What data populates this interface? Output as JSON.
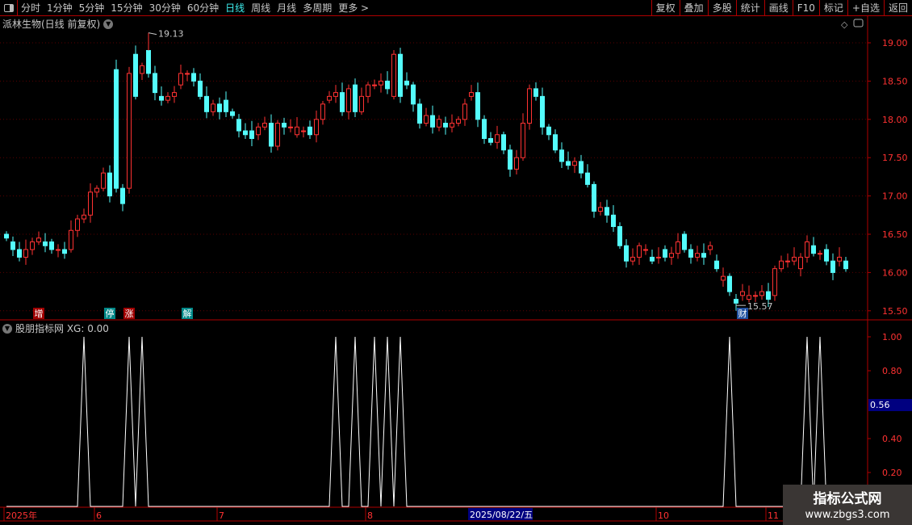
{
  "toolbar": {
    "periods": [
      "分时",
      "1分钟",
      "5分钟",
      "15分钟",
      "30分钟",
      "60分钟",
      "日线",
      "周线",
      "月线",
      "多周期",
      "更多 >"
    ],
    "active": "日线",
    "right_buttons": [
      "复权",
      "叠加",
      "多股",
      "统计",
      "画线",
      "F10",
      "标记",
      "+自选",
      "返回"
    ]
  },
  "main_title": "派林生物(日线 前复权)",
  "indicator_title": "股朋指标网 XG: 0.00",
  "watermark": {
    "line1": "指标公式网",
    "line2": "www.zbgs3.com"
  },
  "colors": {
    "up": "#ff3232",
    "down": "#54fcfc",
    "background": "#000000",
    "border": "#b00000",
    "indicator": "#ffffff"
  },
  "chart_data": [
    {
      "type": "candlestick",
      "ylim": [
        15.4,
        19.3
      ],
      "yticks": [
        "19.00",
        "18.50",
        "18.00",
        "17.50",
        "17.00",
        "16.50",
        "16.00",
        "15.50"
      ],
      "annotations": {
        "high": "19.13",
        "low": "15.57"
      },
      "events": [
        {
          "label": "增",
          "index": 5,
          "color": "#a00000"
        },
        {
          "label": "停",
          "index": 16,
          "color": "#008888"
        },
        {
          "label": "涨",
          "index": 19,
          "color": "#a00000"
        },
        {
          "label": "解",
          "index": 28,
          "color": "#008888"
        },
        {
          "label": "财",
          "index": 114,
          "color": "#2050a0"
        }
      ],
      "candles_open_close": [
        [
          16.5,
          16.45
        ],
        [
          16.4,
          16.3
        ],
        [
          16.3,
          16.2
        ],
        [
          16.2,
          16.3
        ],
        [
          16.3,
          16.4
        ],
        [
          16.4,
          16.45
        ],
        [
          16.4,
          16.35
        ],
        [
          16.4,
          16.3
        ],
        [
          16.3,
          16.3
        ],
        [
          16.3,
          16.25
        ],
        [
          16.3,
          16.55
        ],
        [
          16.55,
          16.7
        ],
        [
          16.7,
          16.75
        ],
        [
          16.75,
          17.05
        ],
        [
          17.05,
          17.1
        ],
        [
          17.1,
          17.3
        ],
        [
          17.3,
          17.0
        ],
        [
          18.65,
          17.1
        ],
        [
          17.1,
          16.9
        ],
        [
          17.1,
          18.6
        ],
        [
          18.85,
          18.3
        ],
        [
          18.6,
          18.7
        ],
        [
          18.9,
          18.6
        ],
        [
          18.6,
          18.35
        ],
        [
          18.3,
          18.25
        ],
        [
          18.25,
          18.3
        ],
        [
          18.3,
          18.35
        ],
        [
          18.45,
          18.6
        ],
        [
          18.6,
          18.6
        ],
        [
          18.6,
          18.5
        ],
        [
          18.5,
          18.3
        ],
        [
          18.3,
          18.1
        ],
        [
          18.1,
          18.2
        ],
        [
          18.2,
          18.1
        ],
        [
          18.25,
          18.1
        ],
        [
          18.1,
          18.05
        ],
        [
          18.0,
          17.85
        ],
        [
          17.85,
          17.8
        ],
        [
          17.85,
          17.75
        ],
        [
          17.8,
          17.9
        ],
        [
          17.9,
          17.95
        ],
        [
          17.95,
          17.65
        ],
        [
          17.65,
          17.95
        ],
        [
          17.95,
          17.9
        ],
        [
          17.9,
          17.9
        ],
        [
          17.8,
          17.9
        ],
        [
          17.85,
          17.85
        ],
        [
          17.9,
          17.8
        ],
        [
          17.8,
          18.0
        ],
        [
          18.0,
          18.2
        ],
        [
          18.25,
          18.3
        ],
        [
          18.3,
          18.35
        ],
        [
          18.35,
          18.1
        ],
        [
          18.1,
          18.4
        ],
        [
          18.45,
          18.1
        ],
        [
          18.1,
          18.3
        ],
        [
          18.3,
          18.45
        ],
        [
          18.45,
          18.45
        ],
        [
          18.45,
          18.5
        ],
        [
          18.5,
          18.4
        ],
        [
          18.3,
          18.85
        ],
        [
          18.85,
          18.3
        ],
        [
          18.5,
          18.45
        ],
        [
          18.45,
          18.2
        ],
        [
          18.2,
          17.95
        ],
        [
          17.95,
          18.05
        ],
        [
          18.05,
          17.9
        ],
        [
          17.9,
          18.0
        ],
        [
          17.95,
          17.9
        ],
        [
          17.9,
          17.95
        ],
        [
          17.95,
          18.0
        ],
        [
          18.0,
          18.2
        ],
        [
          18.3,
          18.35
        ],
        [
          18.35,
          18.0
        ],
        [
          18.0,
          17.75
        ],
        [
          17.75,
          17.7
        ],
        [
          17.7,
          17.8
        ],
        [
          17.8,
          17.6
        ],
        [
          17.6,
          17.35
        ],
        [
          17.35,
          17.5
        ],
        [
          17.5,
          17.95
        ],
        [
          17.95,
          18.4
        ],
        [
          18.4,
          18.3
        ],
        [
          18.3,
          17.9
        ],
        [
          17.9,
          17.8
        ],
        [
          17.8,
          17.6
        ],
        [
          17.6,
          17.45
        ],
        [
          17.45,
          17.4
        ],
        [
          17.4,
          17.45
        ],
        [
          17.45,
          17.3
        ],
        [
          17.3,
          17.15
        ],
        [
          17.15,
          16.8
        ],
        [
          16.8,
          16.85
        ],
        [
          16.85,
          16.75
        ],
        [
          16.75,
          16.6
        ],
        [
          16.6,
          16.35
        ],
        [
          16.35,
          16.15
        ],
        [
          16.15,
          16.2
        ],
        [
          16.2,
          16.35
        ],
        [
          16.3,
          16.3
        ],
        [
          16.2,
          16.15
        ],
        [
          16.2,
          16.2
        ],
        [
          16.3,
          16.2
        ],
        [
          16.2,
          16.25
        ],
        [
          16.25,
          16.4
        ],
        [
          16.5,
          16.3
        ],
        [
          16.3,
          16.2
        ],
        [
          16.2,
          16.25
        ],
        [
          16.25,
          16.2
        ],
        [
          16.3,
          16.35
        ],
        [
          16.15,
          16.05
        ],
        [
          15.9,
          15.95
        ],
        [
          15.95,
          15.75
        ],
        [
          15.65,
          15.6
        ],
        [
          15.7,
          15.75
        ],
        [
          15.65,
          15.7
        ],
        [
          15.7,
          15.7
        ],
        [
          15.7,
          15.75
        ],
        [
          15.75,
          15.65
        ],
        [
          15.7,
          16.05
        ],
        [
          16.05,
          16.15
        ],
        [
          16.15,
          16.15
        ],
        [
          16.15,
          16.2
        ],
        [
          16.05,
          16.2
        ],
        [
          16.2,
          16.4
        ],
        [
          16.35,
          16.25
        ],
        [
          16.25,
          16.25
        ],
        [
          16.3,
          16.15
        ],
        [
          16.15,
          16.0
        ],
        [
          16.15,
          16.2
        ],
        [
          16.15,
          16.05
        ]
      ]
    },
    {
      "type": "line",
      "name": "XG",
      "ylim": [
        0,
        1.05
      ],
      "yticks": [
        "1.00",
        "0.80",
        "0.40",
        "0.20"
      ],
      "cursor_value": "0.56",
      "signal_indices": [
        12,
        19,
        21,
        51,
        54,
        57,
        59,
        61,
        112,
        124,
        126
      ]
    }
  ],
  "date_axis": {
    "labels": [
      {
        "text": "2025年",
        "index": 0
      },
      {
        "text": "6",
        "index": 14
      },
      {
        "text": "7",
        "index": 33
      },
      {
        "text": "8",
        "index": 56
      },
      {
        "text": "10",
        "index": 101
      },
      {
        "text": "11",
        "index": 118
      }
    ],
    "cursor_date": "2025/08/22/五"
  }
}
